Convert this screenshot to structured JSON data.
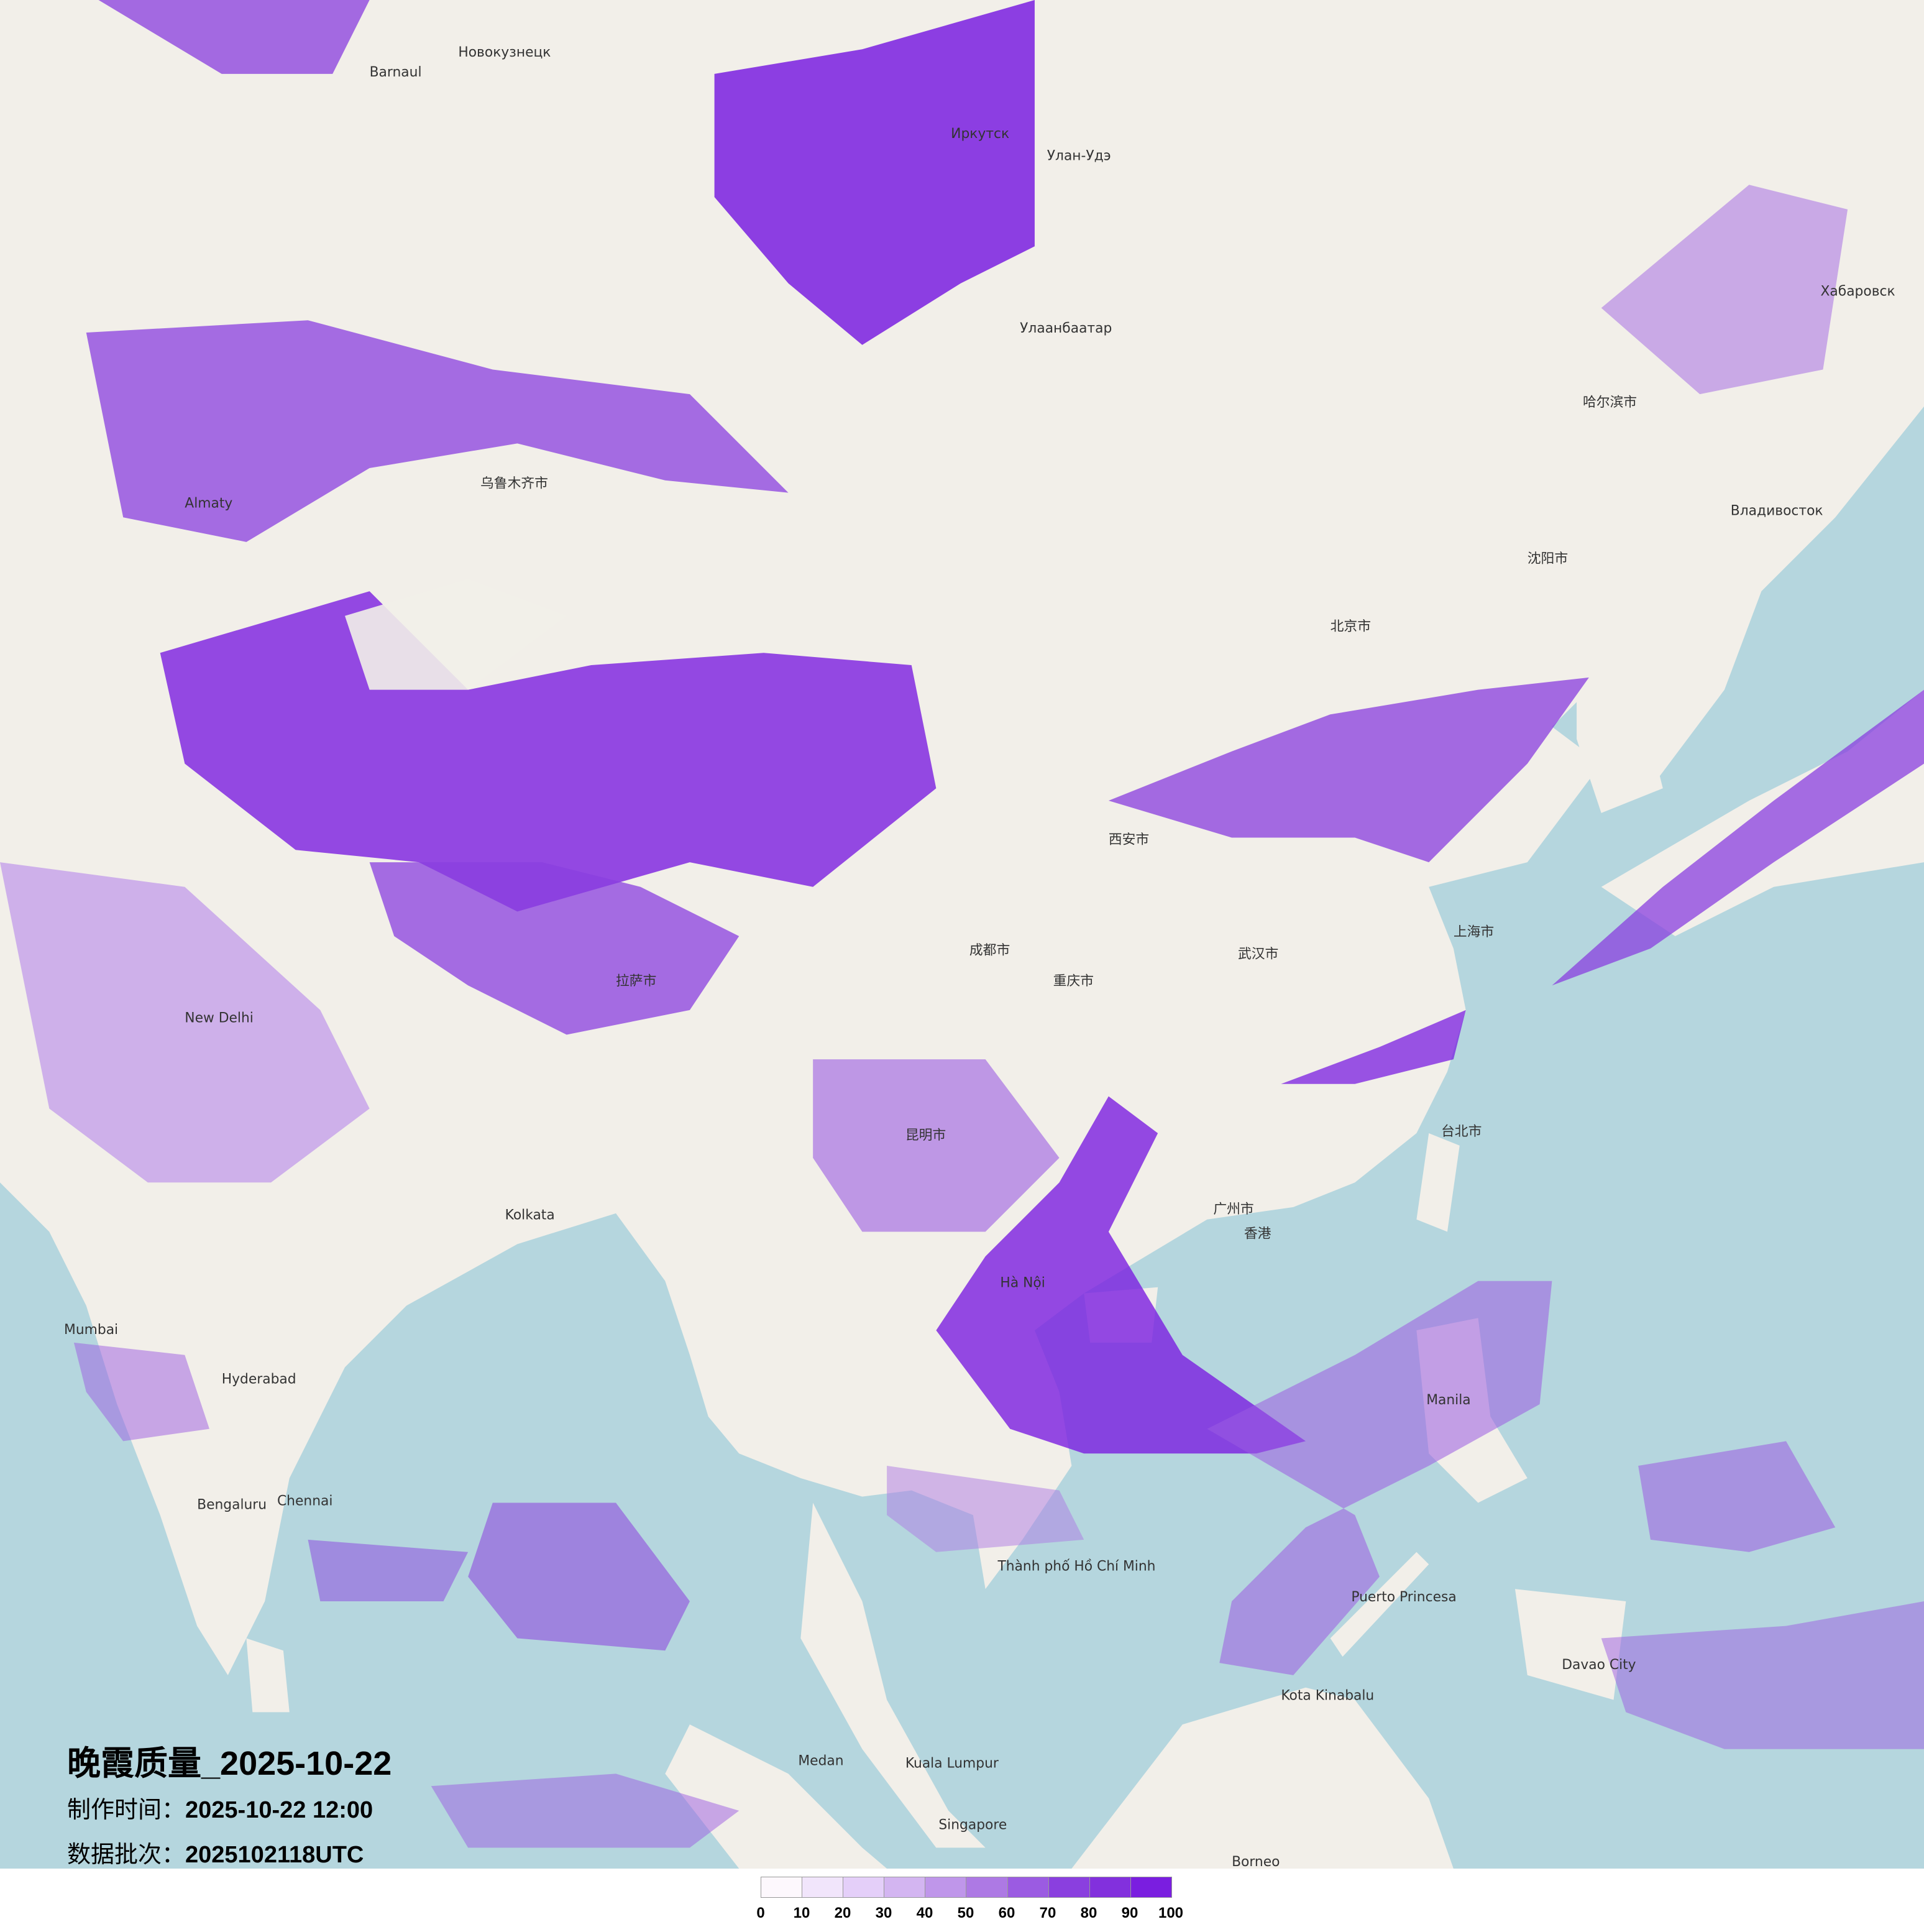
{
  "title": "晚霞质量_2025-10-22",
  "production_time": {
    "label": "制作时间：",
    "value": "2025-10-22 12:00"
  },
  "data_batch": {
    "label": "数据批次：",
    "value": "2025102118UTC"
  },
  "colors": {
    "land": "#f2efe9",
    "sea": "#b5d6de",
    "accent": "#7a1ee0"
  },
  "legend": {
    "ticks": [
      "0",
      "10",
      "20",
      "30",
      "40",
      "50",
      "60",
      "70",
      "80",
      "90",
      "100"
    ],
    "colors": [
      "#fdf8fd",
      "#f1e5fb",
      "#e4cff9",
      "#d3b5f1",
      "#bf96ea",
      "#ad79e4",
      "#9b5be2",
      "#8a3fdf",
      "#8230dd",
      "#7a1ee0"
    ]
  },
  "places": [
    {
      "name": "Barnaul"
    },
    {
      "name": "Новокузнецк"
    },
    {
      "name": "Иркутск"
    },
    {
      "name": "Улан-Удэ"
    },
    {
      "name": "Улаанбаатар"
    },
    {
      "name": "Almaty"
    },
    {
      "name": "乌鲁木齐市"
    },
    {
      "name": "北京市"
    },
    {
      "name": "沈阳市"
    },
    {
      "name": "哈尔滨市"
    },
    {
      "name": "上海市"
    },
    {
      "name": "武汉市"
    },
    {
      "name": "成都市"
    },
    {
      "name": "重庆市"
    },
    {
      "name": "广州市"
    },
    {
      "name": "香港"
    },
    {
      "name": "昆明市"
    },
    {
      "name": "拉萨市"
    },
    {
      "name": "西安市"
    },
    {
      "name": "台北市"
    },
    {
      "name": "New Delhi"
    },
    {
      "name": "Kolkata"
    },
    {
      "name": "Mumbai"
    },
    {
      "name": "Hyderabad"
    },
    {
      "name": "Bengaluru"
    },
    {
      "name": "Chennai"
    },
    {
      "name": "Hà Nội"
    },
    {
      "name": "Thành phố Hồ Chí Minh"
    },
    {
      "name": "Manila"
    },
    {
      "name": "Kuala Lumpur"
    },
    {
      "name": "Singapore"
    },
    {
      "name": "Borneo"
    },
    {
      "name": "Владивосток"
    },
    {
      "name": "Хабаровск"
    },
    {
      "name": "Kota Kinabalu"
    },
    {
      "name": "Puerto Princesa"
    },
    {
      "name": "Davao City"
    },
    {
      "name": "Medan"
    }
  ]
}
